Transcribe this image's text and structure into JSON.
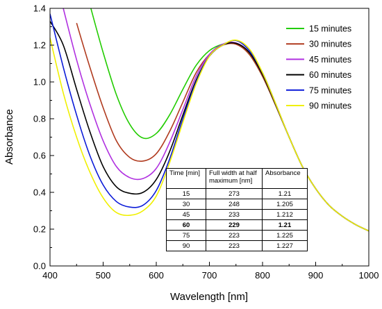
{
  "chart_data": {
    "type": "line",
    "title": "",
    "xlabel": "Wavelength [nm]",
    "ylabel": "Absorbance",
    "xlim": [
      400,
      1000
    ],
    "ylim": [
      0.0,
      1.4
    ],
    "xticks": [
      400,
      500,
      600,
      700,
      800,
      900,
      1000
    ],
    "xtick_labels": [
      "400",
      "500",
      "600",
      "700",
      "800",
      "900",
      "1000"
    ],
    "yticks": [
      0.0,
      0.2,
      0.4,
      0.6,
      0.8,
      1.0,
      1.2,
      1.4
    ],
    "ytick_labels": [
      "0.0",
      "0.2",
      "0.4",
      "0.6",
      "0.8",
      "1.0",
      "1.2",
      "1.4"
    ],
    "grid": false,
    "legend_position": "top-right",
    "x": [
      400,
      425,
      450,
      475,
      500,
      525,
      550,
      575,
      600,
      625,
      650,
      675,
      700,
      725,
      750,
      775,
      800,
      825,
      850,
      875,
      900,
      925,
      950,
      975,
      1000
    ],
    "series": [
      {
        "name": "15 minutes",
        "color": "#22cc00",
        "values": [
          null,
          null,
          null,
          1.42,
          1.16,
          0.93,
          0.77,
          0.695,
          0.72,
          0.82,
          0.96,
          1.09,
          1.17,
          1.205,
          1.21,
          1.15,
          1.03,
          0.87,
          0.7,
          0.54,
          0.42,
          0.33,
          0.27,
          0.225,
          0.19
        ]
      },
      {
        "name": "30 minutes",
        "color": "#b03a1e",
        "values": [
          null,
          null,
          1.32,
          1.08,
          0.86,
          0.68,
          0.59,
          0.57,
          0.61,
          0.73,
          0.89,
          1.05,
          1.15,
          1.2,
          1.205,
          1.15,
          1.03,
          0.87,
          0.7,
          0.54,
          0.42,
          0.33,
          0.27,
          0.225,
          0.19
        ]
      },
      {
        "name": "45 minutes",
        "color": "#b030e0",
        "values": [
          null,
          1.4,
          1.12,
          0.88,
          0.68,
          0.54,
          0.48,
          0.475,
          0.53,
          0.67,
          0.85,
          1.03,
          1.15,
          1.205,
          1.212,
          1.16,
          1.04,
          0.875,
          0.7,
          0.54,
          0.42,
          0.33,
          0.27,
          0.225,
          0.19
        ]
      },
      {
        "name": "60 minutes",
        "color": "#000000",
        "values": [
          1.33,
          1.2,
          0.96,
          0.73,
          0.54,
          0.43,
          0.395,
          0.4,
          0.47,
          0.62,
          0.82,
          1.01,
          1.14,
          1.2,
          1.21,
          1.16,
          1.04,
          0.875,
          0.7,
          0.54,
          0.42,
          0.33,
          0.27,
          0.225,
          0.19
        ]
      },
      {
        "name": "75 minutes",
        "color": "#0a1ad8",
        "values": [
          1.37,
          1.08,
          0.82,
          0.6,
          0.44,
          0.35,
          0.32,
          0.33,
          0.41,
          0.58,
          0.8,
          1.0,
          1.14,
          1.2,
          1.225,
          1.17,
          1.05,
          0.88,
          0.7,
          0.54,
          0.42,
          0.33,
          0.27,
          0.225,
          0.19
        ]
      },
      {
        "name": "90 minutes",
        "color": "#f0f000",
        "values": [
          1.24,
          0.94,
          0.7,
          0.51,
          0.37,
          0.29,
          0.275,
          0.3,
          0.38,
          0.56,
          0.78,
          0.99,
          1.14,
          1.2,
          1.227,
          1.18,
          1.05,
          0.88,
          0.7,
          0.54,
          0.42,
          0.33,
          0.27,
          0.225,
          0.19
        ]
      }
    ],
    "table": {
      "headers": [
        "Time [min]",
        "Full width at half maximum  [nm]",
        "Absorbance"
      ],
      "rows": [
        [
          "15",
          "273",
          "1.21"
        ],
        [
          "30",
          "248",
          "1.205"
        ],
        [
          "45",
          "233",
          "1.212"
        ],
        [
          "60",
          "229",
          "1.21"
        ],
        [
          "75",
          "223",
          "1.225"
        ],
        [
          "90",
          "223",
          "1.227"
        ]
      ],
      "bold_row_index": 3
    }
  }
}
